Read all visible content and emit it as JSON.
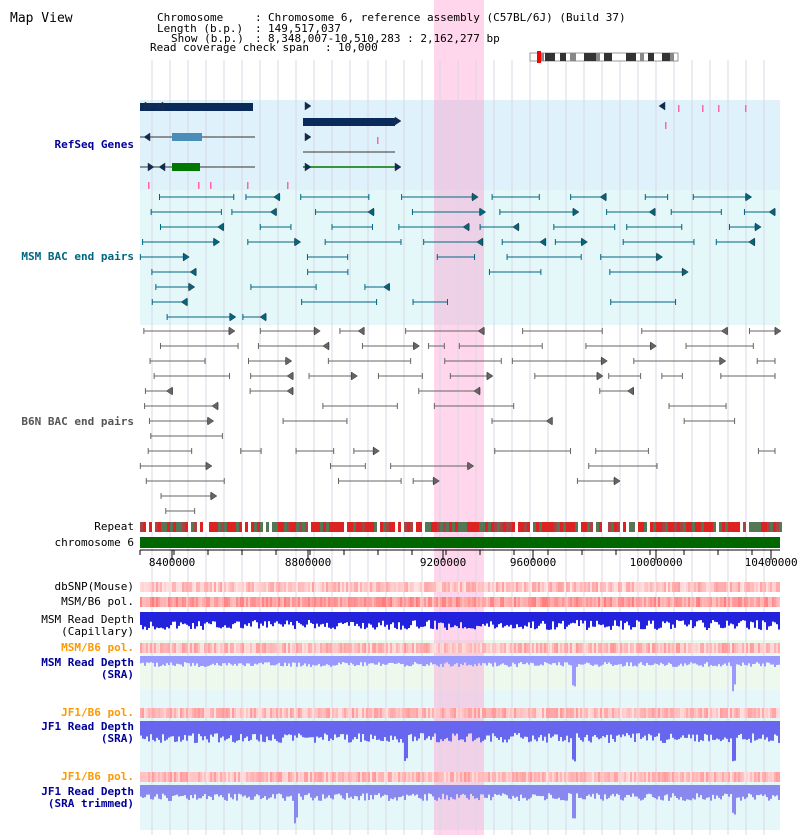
{
  "title": "Map View",
  "info": {
    "chromosome_label": "Chromosome",
    "chromosome_value": "Chromosome 6, reference assembly (C57BL/6J) (Build 37)",
    "length_label": "Length (b.p.)",
    "length_value": "149,517,037",
    "show_label": "Show (b.p.)",
    "show_value": "8,348,007-10,510,283 : 2,162,277 bp",
    "coverage_label": "Read coverage check span",
    "coverage_value": "10,000",
    "separator": ":"
  },
  "tracks": {
    "refseq": "RefSeq Genes",
    "msm_bac": "MSM BAC end pairs",
    "b6n_bac": "B6N BAC end pairs",
    "repeat": "Repeat",
    "chromosome": "chromosome 6",
    "dbsnp": "dbSNP(Mouse)",
    "msm_b6_pol": "MSM/B6 pol.",
    "msm_depth_cap": "MSM Read Depth\n(Capillary)",
    "msm_b6_pol_sra": "MSM/B6 pol.",
    "msm_depth_sra": "MSM Read Depth\n(SRA)",
    "jf1_b6_pol": "JF1/B6 pol.",
    "jf1_depth_sra": "JF1 Read Depth\n(SRA)",
    "jf1_b6_pol_trim": "JF1/B6 pol.",
    "jf1_depth_trim": "JF1 Read Depth\n(SRA trimmed)"
  },
  "axis": {
    "ticks": [
      "8400000",
      "8800000",
      "9200000",
      "9600000",
      "10000000",
      "10400000"
    ]
  },
  "colors": {
    "refseq_label": "#000099",
    "msm_bac_label": "#006680",
    "b6n_bac_label": "#555555",
    "orange_label": "#ff9900",
    "depth_label": "#000099",
    "highlight": "#ff99cc"
  }
}
